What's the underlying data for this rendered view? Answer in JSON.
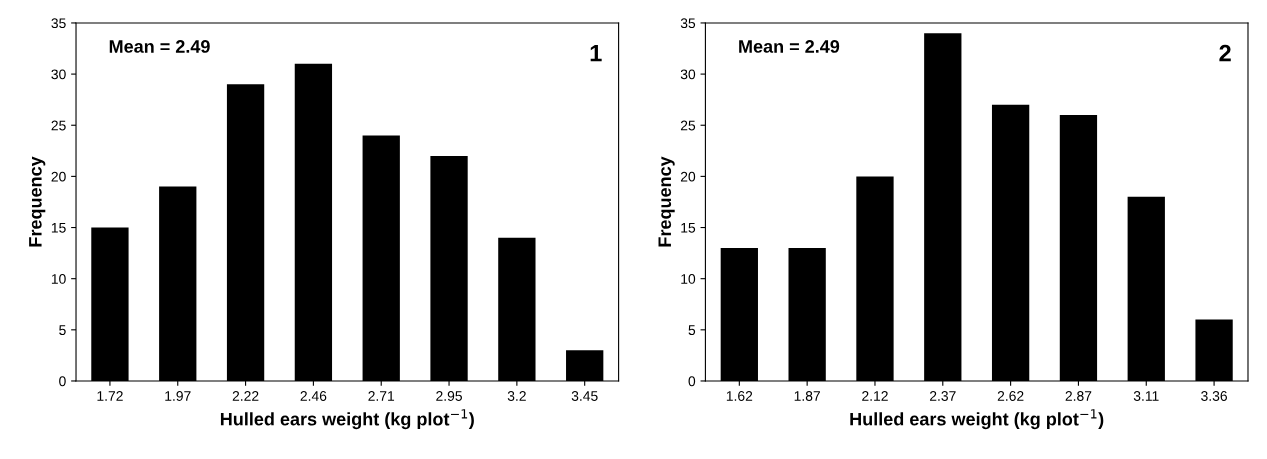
{
  "chart_data": [
    {
      "type": "bar",
      "categories": [
        "1.72",
        "1.97",
        "2.22",
        "2.46",
        "2.71",
        "2.95",
        "3.2",
        "3.45"
      ],
      "values": [
        15,
        19,
        29,
        31,
        24,
        22,
        14,
        3
      ],
      "color": "#000000",
      "xlabel": "Hulled ears weight (kg plot$^{−1}$)",
      "ylabel": "Frequency",
      "ylim": [
        0,
        35
      ],
      "yticks": [
        0,
        5,
        10,
        15,
        20,
        25,
        30,
        35
      ],
      "grid": false,
      "annotations": [
        "Mean = 2.49",
        "1"
      ]
    },
    {
      "type": "bar",
      "categories": [
        "1.62",
        "1.87",
        "2.12",
        "2.37",
        "2.62",
        "2.87",
        "3.11",
        "3.36"
      ],
      "values": [
        13,
        13,
        20,
        34,
        27,
        26,
        18,
        6
      ],
      "color": "#000000",
      "xlabel": "Hulled ears weight (kg plot$^{−1}$)",
      "ylabel": "Frequency",
      "ylim": [
        0,
        35
      ],
      "yticks": [
        0,
        5,
        10,
        15,
        20,
        25,
        30,
        35
      ],
      "grid": false,
      "annotations": [
        "Mean = 2.49",
        "2"
      ]
    }
  ]
}
